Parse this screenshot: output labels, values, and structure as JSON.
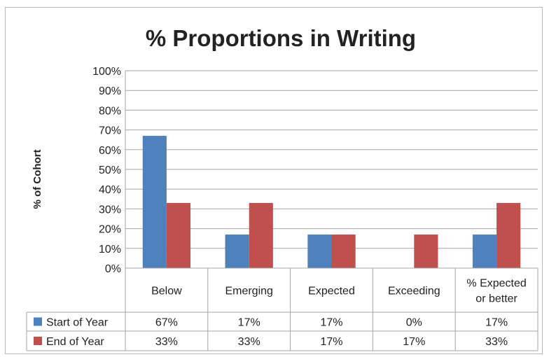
{
  "chart_data": {
    "type": "bar",
    "title": "% Proportions in Writing",
    "ylabel": "% of Cohort",
    "xlabel": "",
    "ylim": [
      0,
      100
    ],
    "yticks": [
      "0%",
      "10%",
      "20%",
      "30%",
      "40%",
      "50%",
      "60%",
      "70%",
      "80%",
      "90%",
      "100%"
    ],
    "categories": [
      [
        "Below"
      ],
      [
        "Emerging"
      ],
      [
        "Expected"
      ],
      [
        "Exceeding"
      ],
      [
        "% Expected",
        "or better"
      ]
    ],
    "series": [
      {
        "name": "Start of Year",
        "color": "#4f81bd",
        "values": [
          67,
          17,
          17,
          0,
          17
        ],
        "labels": [
          "67%",
          "17%",
          "17%",
          "0%",
          "17%"
        ]
      },
      {
        "name": "End of Year",
        "color": "#c0504d",
        "values": [
          33,
          33,
          17,
          17,
          33
        ],
        "labels": [
          "33%",
          "33%",
          "17%",
          "17%",
          "33%"
        ]
      }
    ],
    "grid": true,
    "legend": "data-table"
  }
}
